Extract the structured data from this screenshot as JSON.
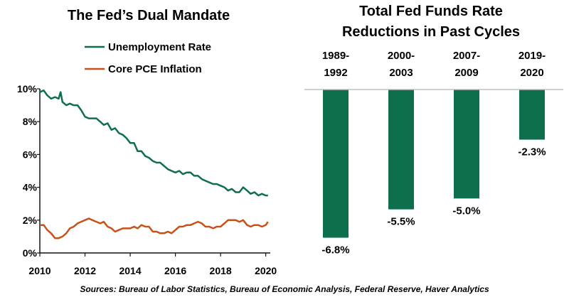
{
  "chart_data": [
    {
      "type": "line",
      "title": "The Fed’s Dual Mandate",
      "xlim": [
        2010,
        2020.2
      ],
      "ylim": [
        0,
        10
      ],
      "x_ticks": [
        "2010",
        "2012",
        "2014",
        "2016",
        "2018",
        "2020"
      ],
      "y_ticks": [
        "0%",
        "2%",
        "4%",
        "6%",
        "8%",
        "10%"
      ],
      "legend_position": "top",
      "grid": false,
      "series": [
        {
          "name": "Unemployment Rate",
          "color": "#0e6f4d",
          "x": [
            2010.0,
            2010.17,
            2010.33,
            2010.5,
            2010.67,
            2010.83,
            2010.92,
            2011.0,
            2011.17,
            2011.33,
            2011.5,
            2011.67,
            2011.83,
            2012.0,
            2012.17,
            2012.33,
            2012.5,
            2012.67,
            2012.83,
            2013.0,
            2013.17,
            2013.33,
            2013.5,
            2013.67,
            2013.83,
            2014.0,
            2014.17,
            2014.33,
            2014.5,
            2014.67,
            2014.83,
            2015.0,
            2015.17,
            2015.33,
            2015.5,
            2015.67,
            2015.83,
            2016.0,
            2016.17,
            2016.33,
            2016.5,
            2016.67,
            2016.83,
            2017.0,
            2017.17,
            2017.33,
            2017.5,
            2017.67,
            2017.83,
            2018.0,
            2018.17,
            2018.33,
            2018.5,
            2018.67,
            2018.83,
            2019.0,
            2019.17,
            2019.33,
            2019.5,
            2019.67,
            2019.83,
            2020.0,
            2020.1
          ],
          "values": [
            9.8,
            9.9,
            9.6,
            9.4,
            9.5,
            9.4,
            9.8,
            9.2,
            9.0,
            9.1,
            9.0,
            9.0,
            8.7,
            8.3,
            8.2,
            8.2,
            8.2,
            8.0,
            7.8,
            7.9,
            7.5,
            7.6,
            7.3,
            7.2,
            7.0,
            6.7,
            6.7,
            6.2,
            6.2,
            5.9,
            5.8,
            5.6,
            5.5,
            5.5,
            5.3,
            5.1,
            5.0,
            4.9,
            5.0,
            4.8,
            4.9,
            4.9,
            4.7,
            4.7,
            4.5,
            4.4,
            4.3,
            4.2,
            4.2,
            4.1,
            4.0,
            3.8,
            3.9,
            3.7,
            3.7,
            4.0,
            3.8,
            3.6,
            3.7,
            3.5,
            3.6,
            3.5,
            3.5
          ]
        },
        {
          "name": "Core PCE Inflation",
          "color": "#c8511a",
          "x": [
            2010.0,
            2010.17,
            2010.33,
            2010.5,
            2010.67,
            2010.83,
            2011.0,
            2011.17,
            2011.33,
            2011.5,
            2011.67,
            2011.83,
            2012.0,
            2012.17,
            2012.33,
            2012.5,
            2012.67,
            2012.83,
            2013.0,
            2013.17,
            2013.33,
            2013.5,
            2013.67,
            2013.83,
            2014.0,
            2014.17,
            2014.33,
            2014.5,
            2014.67,
            2014.83,
            2015.0,
            2015.17,
            2015.33,
            2015.5,
            2015.67,
            2015.83,
            2016.0,
            2016.17,
            2016.33,
            2016.5,
            2016.67,
            2016.83,
            2017.0,
            2017.17,
            2017.33,
            2017.5,
            2017.67,
            2017.83,
            2018.0,
            2018.17,
            2018.33,
            2018.5,
            2018.67,
            2018.83,
            2019.0,
            2019.17,
            2019.33,
            2019.5,
            2019.67,
            2019.83,
            2020.0,
            2020.1
          ],
          "values": [
            1.7,
            1.7,
            1.4,
            1.2,
            0.9,
            0.9,
            1.0,
            1.2,
            1.5,
            1.6,
            1.8,
            1.9,
            2.0,
            2.1,
            2.0,
            1.9,
            1.8,
            1.9,
            1.6,
            1.5,
            1.3,
            1.4,
            1.5,
            1.5,
            1.5,
            1.6,
            1.5,
            1.7,
            1.6,
            1.6,
            1.3,
            1.3,
            1.2,
            1.2,
            1.3,
            1.2,
            1.4,
            1.6,
            1.6,
            1.7,
            1.7,
            1.8,
            1.9,
            1.8,
            1.6,
            1.6,
            1.5,
            1.6,
            1.6,
            1.8,
            2.0,
            2.0,
            2.0,
            1.9,
            2.0,
            1.7,
            1.6,
            1.7,
            1.7,
            1.6,
            1.7,
            1.9
          ]
        }
      ]
    },
    {
      "type": "bar",
      "title_lines": [
        "Total Fed Funds Rate",
        "Reductions in Past Cycles"
      ],
      "categories": [
        [
          "1989-",
          "1992"
        ],
        [
          "2000-",
          "2003"
        ],
        [
          "2007-",
          "2009"
        ],
        [
          "2019-",
          "2020"
        ]
      ],
      "values": [
        -6.8,
        -5.5,
        -5.0,
        -2.3
      ],
      "value_labels": [
        "-6.8%",
        "-5.5%",
        "-5.0%",
        "-2.3%"
      ],
      "ylim": [
        -7.5,
        0
      ],
      "color": "#0e6f4d"
    }
  ],
  "source_note": "Sources: Bureau of Labor Statistics, Bureau of Economic Analysis, Federal Reserve, Haver Analytics"
}
